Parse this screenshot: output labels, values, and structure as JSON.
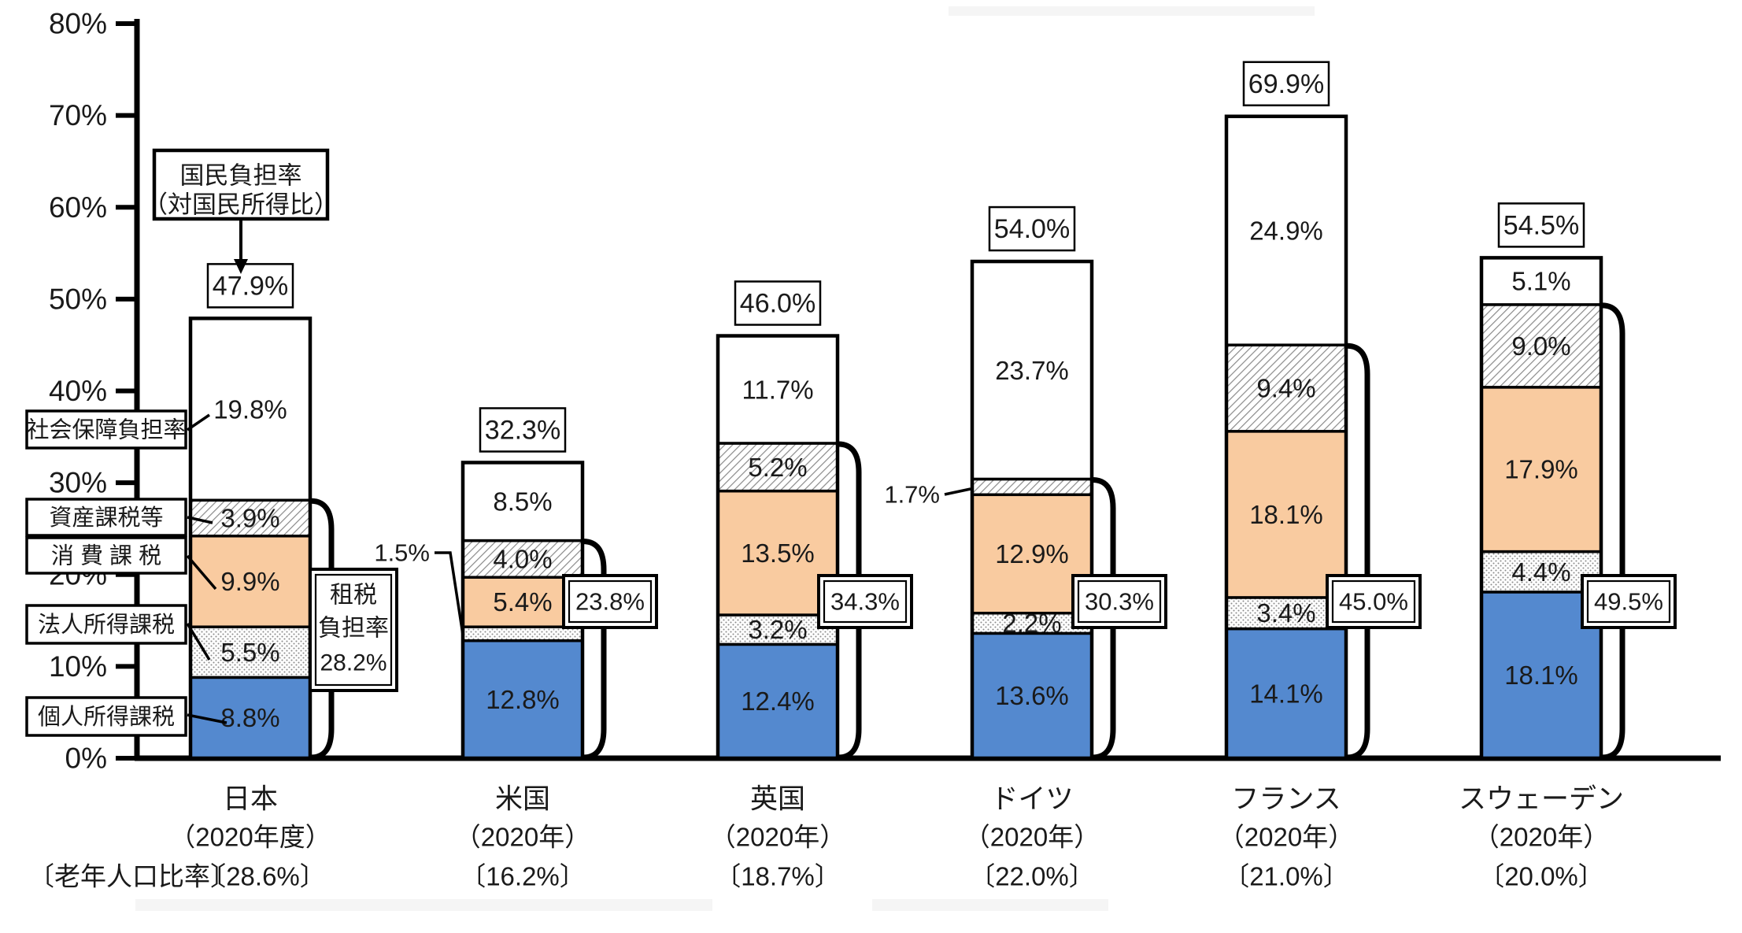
{
  "chart_data": {
    "type": "bar",
    "stacked": true,
    "unit": "%",
    "ylim": [
      0,
      80
    ],
    "ytick_step": 10,
    "ytick_labels": [
      "0%",
      "10%",
      "20%",
      "30%",
      "40%",
      "50%",
      "60%",
      "70%",
      "80%"
    ],
    "grid": false,
    "legend_position": "left-callout-boxes",
    "series_names": [
      "個人所得課税",
      "法人所得課税",
      "消費課税",
      "資産課税等",
      "社会保障負担率"
    ],
    "left_label_boxes": [
      "社会保障負担率",
      "資産課税等",
      "消 費 課 税",
      "法人所得課税",
      "個人所得課税"
    ],
    "annotation_box": {
      "line1": "国民負担率",
      "line2": "（対国民所得比）"
    },
    "tax_burden_box_lines": [
      "租税",
      "負担率"
    ],
    "elderly_row_prefix": "〔老年人口比率〕",
    "colors": {
      "bar_blue": "#5489cf",
      "bar_orange": "#f9cba0",
      "hatch_line": "#8a8a8a",
      "dot": "#8c8c8c",
      "outline": "#000000",
      "text": "#1a1a1a"
    },
    "categories": [
      {
        "name": "日本",
        "year": "（2020年度）",
        "elderly": "〔28.6%〕",
        "total_label": "47.9%",
        "tax_burden_label": "28.2%",
        "values": [
          8.8,
          5.5,
          9.9,
          3.9,
          19.8
        ],
        "value_labels": [
          "8.8%",
          "5.5%",
          "9.9%",
          "3.9%",
          "19.8%"
        ],
        "outside_labels": []
      },
      {
        "name": "米国",
        "year": "（2020年）",
        "elderly": "〔16.2%〕",
        "total_label": "32.3%",
        "tax_burden_label": "23.8%",
        "values": [
          12.8,
          1.5,
          5.4,
          4.0,
          8.5
        ],
        "value_labels": [
          "12.8%",
          null,
          "5.4%",
          "4.0%",
          "8.5%"
        ],
        "outside_labels": [
          {
            "segment": 1,
            "label": "1.5%"
          }
        ]
      },
      {
        "name": "英国",
        "year": "（2020年）",
        "elderly": "〔18.7%〕",
        "total_label": "46.0%",
        "tax_burden_label": "34.3%",
        "values": [
          12.4,
          3.2,
          13.5,
          5.2,
          11.7
        ],
        "value_labels": [
          "12.4%",
          "3.2%",
          "13.5%",
          "5.2%",
          "11.7%"
        ],
        "outside_labels": []
      },
      {
        "name": "ドイツ",
        "year": "（2020年）",
        "elderly": "〔22.0%〕",
        "total_label": "54.0%",
        "tax_burden_label": "30.3%",
        "values": [
          13.6,
          2.2,
          12.9,
          1.7,
          23.7
        ],
        "value_labels": [
          "13.6%",
          "2.2%",
          "12.9%",
          null,
          "23.7%"
        ],
        "outside_labels": [
          {
            "segment": 3,
            "label": "1.7%"
          }
        ]
      },
      {
        "name": "フランス",
        "year": "（2020年）",
        "elderly": "〔21.0%〕",
        "total_label": "69.9%",
        "tax_burden_label": "45.0%",
        "values": [
          14.1,
          3.4,
          18.1,
          9.4,
          24.9
        ],
        "value_labels": [
          "14.1%",
          "3.4%",
          "18.1%",
          "9.4%",
          "24.9%"
        ],
        "outside_labels": []
      },
      {
        "name": "スウェーデン",
        "year": "（2020年）",
        "elderly": "〔20.0%〕",
        "total_label": "54.5%",
        "tax_burden_label": "49.5%",
        "values": [
          18.1,
          4.4,
          17.9,
          9.0,
          5.1
        ],
        "value_labels": [
          "18.1%",
          "4.4%",
          "17.9%",
          "9.0%",
          "5.1%"
        ],
        "outside_labels": []
      }
    ]
  }
}
